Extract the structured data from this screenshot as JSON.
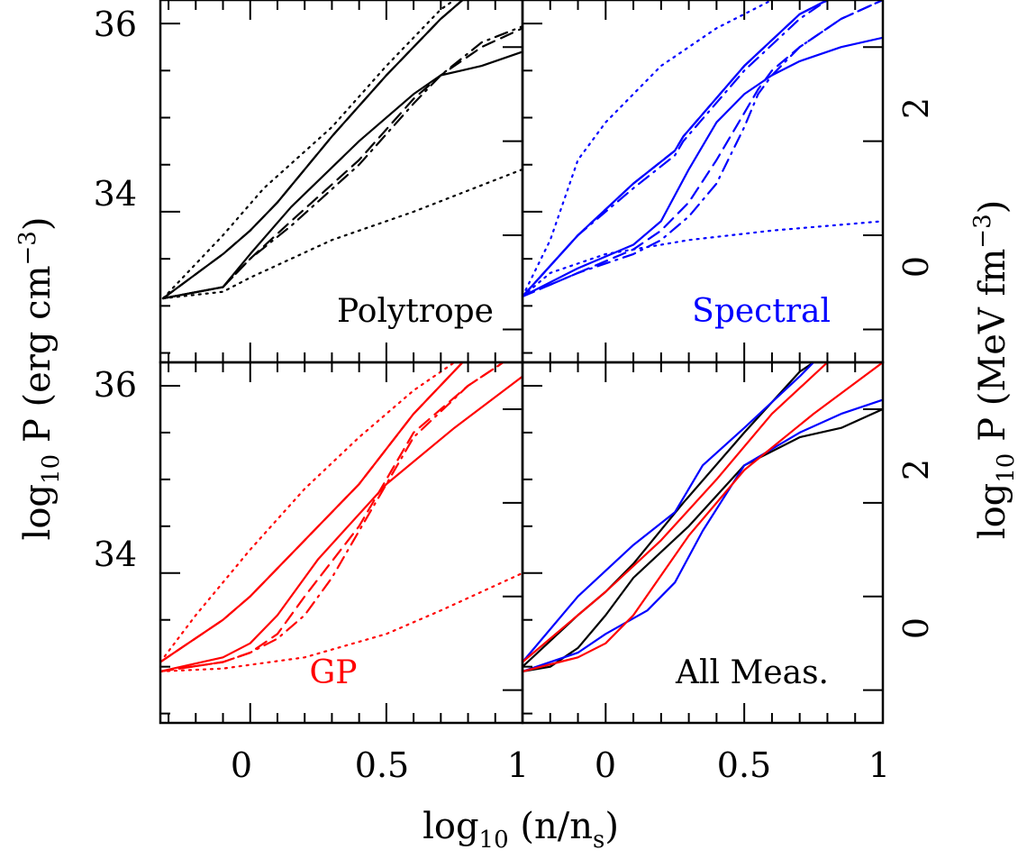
{
  "figure": {
    "y_label_left": "log",
    "y_label_left_sub": "10",
    "y_label_left_tail": " P (erg cm",
    "y_label_left_sup": "−3",
    "y_label_left_end": ")",
    "y_label_right": "log",
    "y_label_right_sub": "10",
    "y_label_right_tail": " P (MeV fm",
    "y_label_right_sup": "−3",
    "y_label_right_end": ")",
    "x_label": "log",
    "x_label_sub": "10",
    "x_label_mid": " (n/n",
    "x_label_sub2": "s",
    "x_label_end": ")",
    "left_ticks": [
      "34",
      "36"
    ],
    "right_ticks": [
      "0",
      "2"
    ],
    "x_ticks": [
      "0",
      "0.5",
      "1"
    ]
  },
  "colors": {
    "black": "#000000",
    "blue": "#0000ff",
    "red": "#ff0000"
  },
  "chart_data": [
    {
      "type": "line",
      "title": "Polytrope",
      "color": "#000000",
      "xlim": [
        -0.33,
        1.0
      ],
      "ylim": [
        32.4,
        36.25
      ],
      "series": [
        {
          "style": "dotted",
          "x": [
            -0.32,
            -0.1,
            0.05,
            0.3,
            0.5,
            0.7,
            0.75
          ],
          "y": [
            33.08,
            33.75,
            34.25,
            34.9,
            35.55,
            36.15,
            36.25
          ]
        },
        {
          "style": "dotted",
          "x": [
            -0.32,
            -0.1,
            0.0,
            0.3,
            0.6,
            1.0
          ],
          "y": [
            33.08,
            33.15,
            33.3,
            33.7,
            34.0,
            34.45
          ]
        },
        {
          "style": "solid",
          "x": [
            -0.32,
            -0.1,
            0.0,
            0.1,
            0.3,
            0.5,
            0.7,
            0.78
          ],
          "y": [
            33.08,
            33.55,
            33.8,
            34.1,
            34.8,
            35.45,
            36.05,
            36.25
          ]
        },
        {
          "style": "dashed",
          "x": [
            -0.32,
            -0.1,
            0.0,
            0.1,
            0.3,
            0.5,
            0.7,
            0.78
          ],
          "y": [
            33.08,
            33.55,
            33.8,
            34.1,
            34.8,
            35.45,
            36.05,
            36.25
          ]
        },
        {
          "style": "solid",
          "x": [
            -0.32,
            -0.1,
            0.0,
            0.15,
            0.4,
            0.6,
            0.7,
            0.85,
            1.0
          ],
          "y": [
            33.08,
            33.2,
            33.55,
            34.05,
            34.75,
            35.25,
            35.45,
            35.55,
            35.7
          ]
        },
        {
          "style": "dashed",
          "x": [
            -0.32,
            -0.1,
            0.0,
            0.15,
            0.4,
            0.6,
            0.7,
            0.85,
            1.0
          ],
          "y": [
            33.08,
            33.2,
            33.5,
            33.9,
            34.55,
            35.2,
            35.45,
            35.75,
            35.95
          ]
        },
        {
          "style": "dashdot",
          "x": [
            -0.32,
            -0.1,
            0.0,
            0.15,
            0.4,
            0.6,
            0.7,
            0.85,
            1.0
          ],
          "y": [
            33.08,
            33.2,
            33.5,
            33.85,
            34.5,
            35.15,
            35.45,
            35.8,
            35.97
          ]
        }
      ]
    },
    {
      "type": "line",
      "title": "Spectral",
      "color": "#0000ff",
      "xlim": [
        -0.3,
        1.0
      ],
      "ylim": [
        32.4,
        36.25
      ],
      "series": [
        {
          "style": "dotted",
          "x": [
            -0.3,
            -0.2,
            -0.1,
            0.0,
            0.2,
            0.4,
            0.6
          ],
          "y": [
            33.1,
            33.7,
            34.55,
            34.95,
            35.55,
            35.95,
            36.25
          ]
        },
        {
          "style": "dotted",
          "x": [
            -0.3,
            -0.2,
            0.0,
            0.3,
            0.6,
            1.0
          ],
          "y": [
            33.1,
            33.35,
            33.55,
            33.7,
            33.8,
            33.9
          ]
        },
        {
          "style": "solid",
          "x": [
            -0.3,
            -0.1,
            0.1,
            0.25,
            0.28,
            0.5,
            0.7,
            0.8
          ],
          "y": [
            33.1,
            33.75,
            34.3,
            34.65,
            34.8,
            35.55,
            36.1,
            36.25
          ]
        },
        {
          "style": "dashed",
          "x": [
            -0.3,
            -0.1,
            0.1,
            0.25,
            0.28,
            0.5,
            0.7,
            0.8
          ],
          "y": [
            33.1,
            33.75,
            34.3,
            34.65,
            34.8,
            35.55,
            36.1,
            36.25
          ]
        },
        {
          "style": "dashdot",
          "x": [
            -0.3,
            -0.1,
            0.1,
            0.25,
            0.28,
            0.5,
            0.7,
            0.8
          ],
          "y": [
            33.1,
            33.75,
            34.25,
            34.6,
            34.75,
            35.5,
            36.05,
            36.25
          ]
        },
        {
          "style": "solid",
          "x": [
            -0.3,
            -0.1,
            0.1,
            0.2,
            0.3,
            0.4,
            0.5,
            0.6,
            0.7,
            0.85,
            1.0
          ],
          "y": [
            33.1,
            33.4,
            33.65,
            33.9,
            34.45,
            34.95,
            35.25,
            35.45,
            35.6,
            35.75,
            35.85
          ]
        },
        {
          "style": "dashed",
          "x": [
            -0.3,
            -0.1,
            0.1,
            0.2,
            0.3,
            0.4,
            0.5,
            0.55,
            0.6,
            0.7,
            0.85,
            1.0
          ],
          "y": [
            33.1,
            33.35,
            33.6,
            33.8,
            34.1,
            34.55,
            35.05,
            35.3,
            35.5,
            35.75,
            36.05,
            36.25
          ]
        },
        {
          "style": "dashdot",
          "x": [
            -0.3,
            -0.1,
            0.1,
            0.2,
            0.3,
            0.4,
            0.5,
            0.55,
            0.6,
            0.7,
            0.85,
            1.0
          ],
          "y": [
            33.1,
            33.35,
            33.55,
            33.7,
            33.95,
            34.3,
            34.9,
            35.25,
            35.45,
            35.75,
            36.05,
            36.25
          ]
        }
      ]
    },
    {
      "type": "line",
      "title": "GP",
      "color": "#ff0000",
      "xlim": [
        -0.33,
        1.0
      ],
      "ylim": [
        32.4,
        36.25
      ],
      "series": [
        {
          "style": "dotted",
          "x": [
            -0.33,
            -0.2,
            0.0,
            0.2,
            0.4,
            0.6,
            0.75
          ],
          "y": [
            33.05,
            33.55,
            34.25,
            34.9,
            35.45,
            35.95,
            36.25
          ]
        },
        {
          "style": "dotted",
          "x": [
            -0.33,
            -0.1,
            0.2,
            0.5,
            0.7,
            0.85,
            1.0
          ],
          "y": [
            32.95,
            32.98,
            33.1,
            33.35,
            33.6,
            33.8,
            34.0
          ]
        },
        {
          "style": "solid",
          "x": [
            -0.33,
            -0.1,
            0.0,
            0.2,
            0.4,
            0.6,
            0.78
          ],
          "y": [
            33.05,
            33.5,
            33.75,
            34.35,
            34.95,
            35.7,
            36.25
          ]
        },
        {
          "style": "dashed",
          "x": [
            -0.33,
            -0.1,
            0.0,
            0.2,
            0.4,
            0.6,
            0.78
          ],
          "y": [
            33.05,
            33.5,
            33.75,
            34.35,
            34.95,
            35.7,
            36.25
          ]
        },
        {
          "style": "solid",
          "x": [
            -0.33,
            -0.1,
            0.0,
            0.1,
            0.25,
            0.5,
            0.75,
            1.0
          ],
          "y": [
            32.95,
            33.1,
            33.25,
            33.55,
            34.15,
            34.95,
            35.55,
            36.1
          ]
        },
        {
          "style": "dashed",
          "x": [
            -0.33,
            -0.1,
            0.0,
            0.1,
            0.2,
            0.4,
            0.5,
            0.6,
            0.8,
            0.93
          ],
          "y": [
            32.95,
            33.05,
            33.15,
            33.35,
            33.75,
            34.5,
            35.0,
            35.5,
            36.0,
            36.25
          ]
        },
        {
          "style": "dashdot",
          "x": [
            -0.33,
            -0.1,
            0.0,
            0.1,
            0.2,
            0.3,
            0.4,
            0.5,
            0.6,
            0.8,
            0.93
          ],
          "y": [
            32.95,
            33.05,
            33.15,
            33.3,
            33.55,
            33.95,
            34.45,
            34.95,
            35.45,
            36.0,
            36.25
          ]
        }
      ]
    },
    {
      "type": "line",
      "title": "All Meas.",
      "color": "#000000",
      "xlim": [
        -0.3,
        1.0
      ],
      "ylim": [
        32.4,
        36.25
      ],
      "series": [
        {
          "name": "",
          "color": "#000000",
          "style": "solid",
          "x": [
            -0.3,
            -0.1,
            0.0,
            0.1,
            0.28,
            0.5,
            0.7,
            0.75
          ],
          "y": [
            33.0,
            33.55,
            33.8,
            34.1,
            34.75,
            35.5,
            36.15,
            36.25
          ]
        },
        {
          "name": "",
          "color": "#000000",
          "style": "solid",
          "x": [
            -0.3,
            -0.2,
            -0.1,
            0.0,
            0.1,
            0.3,
            0.5,
            0.7,
            0.85,
            1.0
          ],
          "y": [
            32.95,
            33.0,
            33.2,
            33.55,
            33.95,
            34.5,
            35.15,
            35.45,
            35.55,
            35.75
          ]
        },
        {
          "name": "",
          "color": "#0000ff",
          "style": "solid",
          "x": [
            -0.3,
            -0.1,
            0.1,
            0.25,
            0.28,
            0.35,
            0.5,
            0.7,
            0.75
          ],
          "y": [
            33.05,
            33.75,
            34.3,
            34.65,
            34.8,
            35.15,
            35.55,
            36.1,
            36.25
          ]
        },
        {
          "name": "",
          "color": "#0000ff",
          "style": "solid",
          "x": [
            -0.3,
            -0.1,
            0.0,
            0.15,
            0.25,
            0.35,
            0.5,
            0.7,
            0.85,
            1.0
          ],
          "y": [
            32.95,
            33.15,
            33.35,
            33.6,
            33.9,
            34.45,
            35.15,
            35.5,
            35.7,
            35.85
          ]
        },
        {
          "name": "",
          "color": "#ff0000",
          "style": "solid",
          "x": [
            -0.3,
            -0.1,
            0.0,
            0.2,
            0.4,
            0.6,
            0.8
          ],
          "y": [
            33.05,
            33.55,
            33.8,
            34.35,
            35.0,
            35.7,
            36.25
          ]
        },
        {
          "name": "",
          "color": "#ff0000",
          "style": "solid",
          "x": [
            -0.3,
            -0.1,
            0.0,
            0.1,
            0.3,
            0.5,
            0.75,
            1.0
          ],
          "y": [
            32.95,
            33.1,
            33.25,
            33.55,
            34.4,
            35.1,
            35.7,
            36.25
          ]
        }
      ]
    }
  ]
}
